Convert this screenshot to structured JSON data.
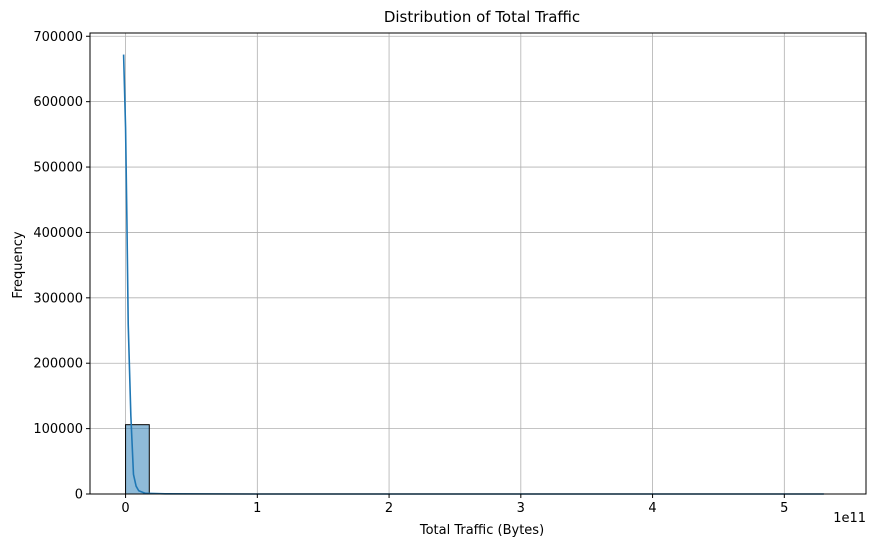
{
  "chart_data": {
    "type": "histogram",
    "title": "Distribution of Total Traffic",
    "xlabel": "Total Traffic (Bytes)",
    "ylabel": "Frequency",
    "x_scale_label": "1e11",
    "xlim": [
      -0.27,
      5.62
    ],
    "ylim": [
      0,
      705000
    ],
    "x_ticks": [
      0,
      1,
      2,
      3,
      4,
      5
    ],
    "y_ticks": [
      0,
      100000,
      200000,
      300000,
      400000,
      500000,
      600000,
      700000
    ],
    "grid": true,
    "bar_color": "#1f77b4",
    "bar_alpha": 0.5,
    "bins": [
      {
        "x0": 0.0,
        "x1": 0.18,
        "count": 106000
      },
      {
        "x0": 0.18,
        "x1": 5.3,
        "count": 0
      }
    ],
    "kde_line": {
      "color": "#1f77b4",
      "x": [
        -0.015,
        0.0,
        0.01,
        0.02,
        0.04,
        0.06,
        0.08,
        0.1,
        0.15,
        0.3,
        1.0,
        2.0,
        3.0,
        4.0,
        5.0,
        5.3
      ],
      "y": [
        672000,
        560000,
        420000,
        260000,
        120000,
        30000,
        12000,
        5000,
        1000,
        300,
        0,
        0,
        0,
        0,
        0,
        0
      ]
    }
  }
}
